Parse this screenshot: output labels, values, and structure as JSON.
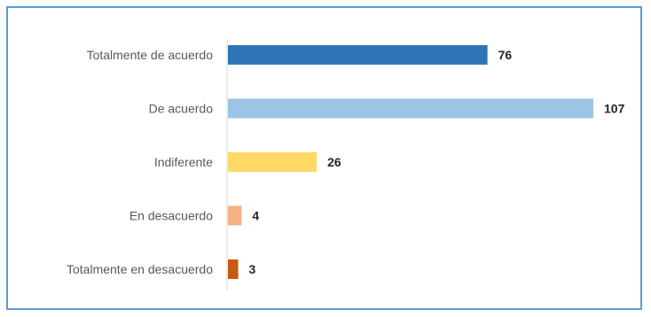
{
  "chart_data": {
    "type": "bar",
    "orientation": "horizontal",
    "categories": [
      "Totalmente de acuerdo",
      "De acuerdo",
      "Indiferente",
      "En desacuerdo",
      "Totalmente en desacuerdo"
    ],
    "values": [
      76,
      107,
      26,
      4,
      3
    ],
    "colors": [
      "#2e75b6",
      "#9dc3e6",
      "#ffd966",
      "#f4b183",
      "#c55a11"
    ],
    "title": "",
    "xlabel": "",
    "ylabel": "",
    "xlim": [
      0,
      107
    ],
    "grid": false,
    "legend": "none",
    "data_labels": true
  },
  "frame": {
    "border_color": "#5b9bd5",
    "axis_color": "#d9d9d9"
  }
}
